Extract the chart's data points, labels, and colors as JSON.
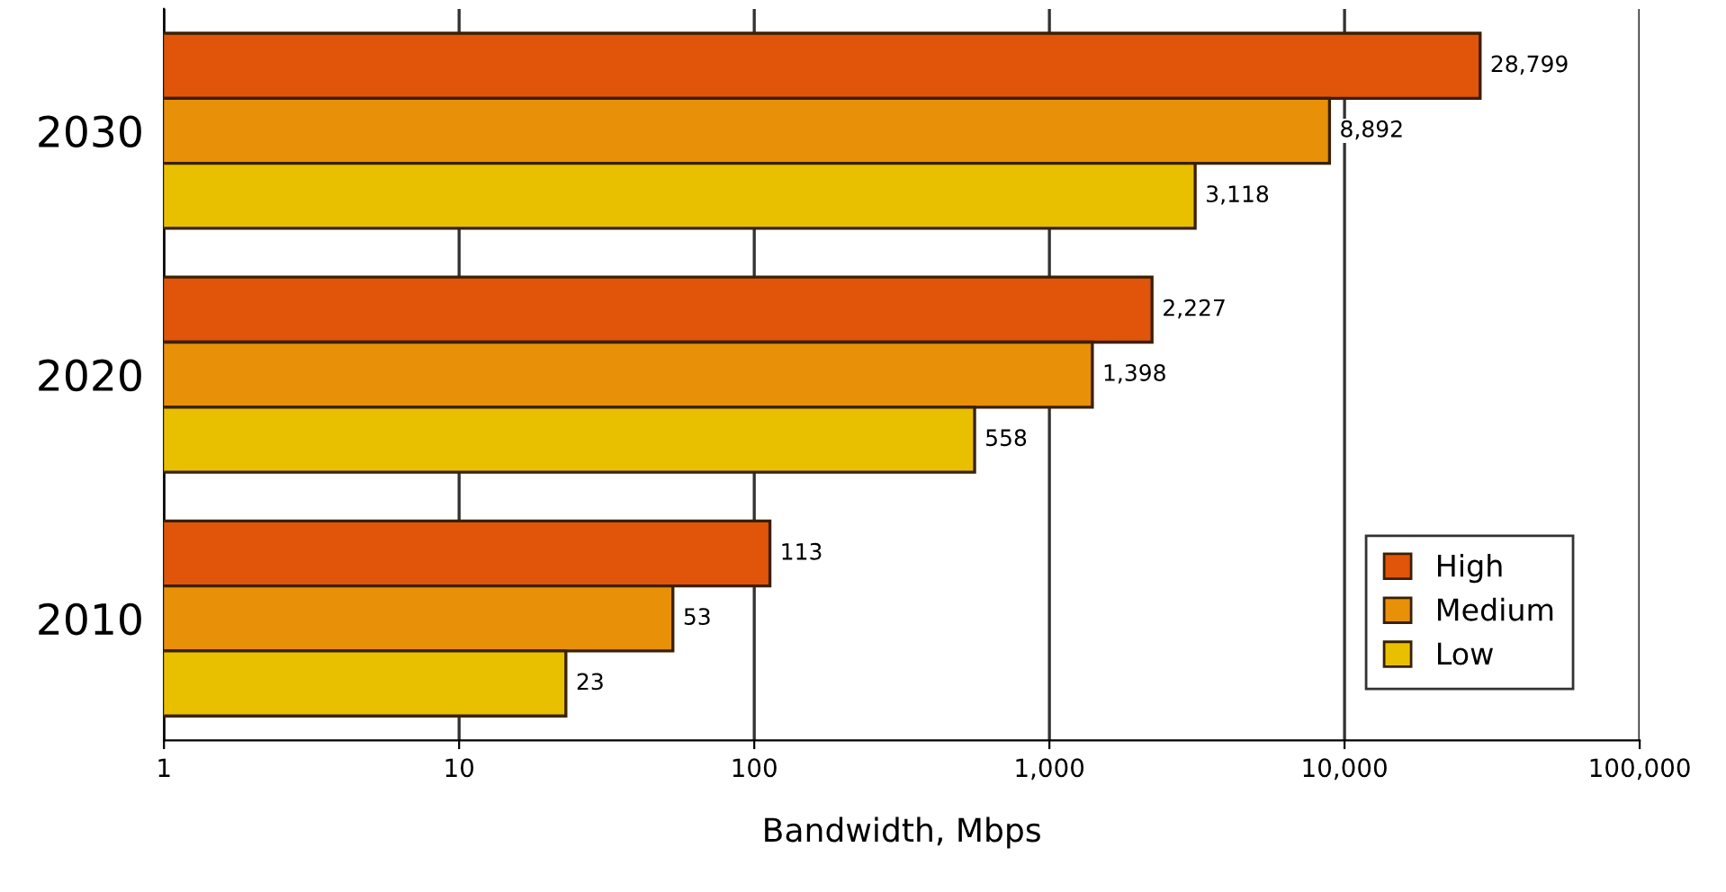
{
  "chart_data": {
    "type": "bar",
    "orientation": "horizontal",
    "xlabel": "Bandwidth, Mbps",
    "categories": [
      "2030",
      "2020",
      "2010"
    ],
    "series": [
      {
        "name": "High",
        "color": "#e0550a",
        "values": [
          28799,
          2227,
          113
        ],
        "value_labels": [
          "28,799",
          "2,227",
          "113"
        ]
      },
      {
        "name": "Medium",
        "color": "#e89008",
        "values": [
          8892,
          1398,
          53
        ],
        "value_labels": [
          "8,892",
          "1,398",
          "53"
        ]
      },
      {
        "name": "Low",
        "color": "#e8c000",
        "values": [
          3118,
          558,
          23
        ],
        "value_labels": [
          "3,118",
          "558",
          "23"
        ]
      }
    ],
    "log": "x",
    "xlim": [
      1,
      100000
    ],
    "xticks": [
      1,
      10,
      100,
      {
        "value": 1000,
        "label": "1,000"
      },
      {
        "value": 10000,
        "label": "10,000"
      },
      {
        "value": 100000,
        "label": "100,000"
      }
    ],
    "grid": "x",
    "legend": "bottom right"
  }
}
